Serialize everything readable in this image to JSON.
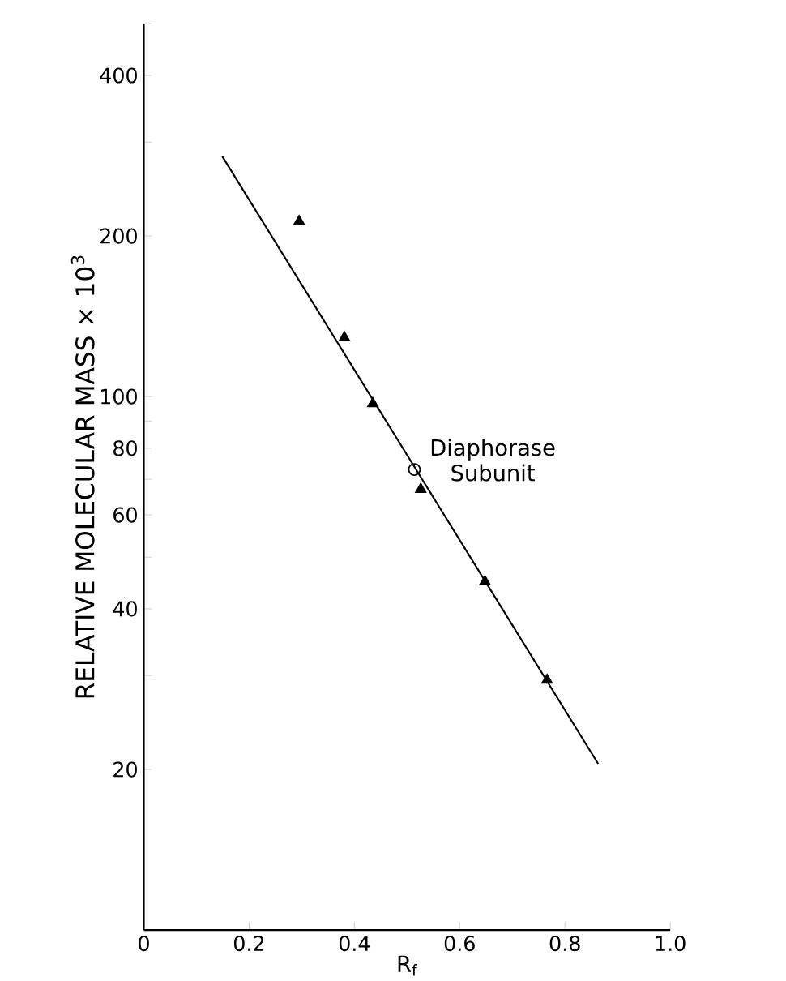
{
  "chart_data": {
    "type": "scatter",
    "xlabel": "R$_{f}$",
    "ylabel": "RELATIVE MOLECULAR MASS  × 10$^{3}$",
    "log": "y",
    "xlim": [
      0,
      1
    ],
    "ylim": [
      10,
      500
    ],
    "xticks": [
      0,
      0.2,
      0.4,
      0.6,
      0.8,
      {
        "value": 1,
        "label": "1.0"
      }
    ],
    "yticks": [
      20,
      {
        "value": 30,
        "label": null
      },
      40,
      {
        "value": 50,
        "label": null
      },
      60,
      {
        "value": 70,
        "label": null
      },
      80,
      {
        "value": 90,
        "label": null
      },
      100,
      200,
      {
        "value": 300,
        "label": null
      },
      400,
      {
        "value": 500,
        "label": null
      }
    ],
    "grid": false,
    "series": [
      {
        "marker": "triangle",
        "color": "#000000",
        "x": [
          0.295,
          0.381,
          0.435,
          0.526,
          0.648,
          0.766
        ],
        "values": [
          213,
          129,
          97,
          67,
          45,
          29.4
        ]
      },
      {
        "marker": "circle",
        "color": "#000000",
        "x": [
          0.514
        ],
        "values": [
          73
        ]
      },
      {
        "type": "line",
        "marker": "none",
        "color": "#000000",
        "x": [
          0.149,
          0.863
        ],
        "values": [
          282,
          20.5
        ]
      }
    ],
    "annotations": [
      {
        "text": "Diaphorase Subunit",
        "x": 0.514,
        "y": 73
      }
    ]
  }
}
